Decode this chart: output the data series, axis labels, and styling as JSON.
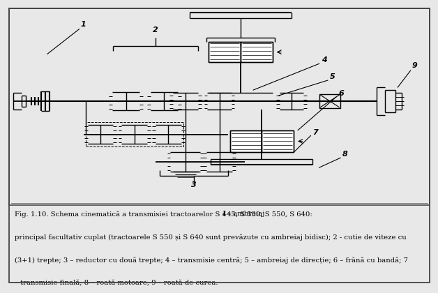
{
  "bg_color": "#e8e8e8",
  "fig_width": 6.09,
  "fig_height": 3.97,
  "lw": 1.0,
  "lc": "#000000",
  "caption_line1": "Fig. 1.10. Schema cinematică a transmisiei tractoarelor S 445, S 530, S 550, S 640: 1 – ambreiaj",
  "caption_line2": "principal facultativ cuplat (tractoarele S 550 și S 640 sunt prevăzute cu ambreiaj bidisc); 2 - cutie de viteze cu",
  "caption_line3": "(3+1) trepte; 3 – reductor cu două trepte; 4 – transmisie centră; 5 – ambreiaj de direcție; 6 – frână cu bandă; 7",
  "caption_line4": "– transmisie finală; 8 – roată motoare; 9 – roată de curea.",
  "caption_fs": 7.2
}
